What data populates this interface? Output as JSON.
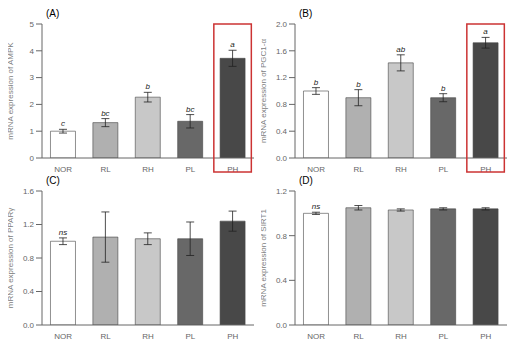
{
  "chart_data": [
    {
      "type": "bar",
      "title": "(A)",
      "ylabel": "mRNA expression of AMPK",
      "categories": [
        "NOR",
        "RL",
        "RH",
        "PL",
        "PH"
      ],
      "values": [
        1.0,
        1.32,
        2.27,
        1.37,
        3.72
      ],
      "errors": [
        0.07,
        0.15,
        0.18,
        0.25,
        0.3
      ],
      "colors": [
        "#ffffff",
        "#b0b0b0",
        "#c8c8c8",
        "#686868",
        "#484848"
      ],
      "ylim": [
        0,
        5
      ],
      "yticks": [
        0,
        1,
        2,
        3,
        4,
        5
      ],
      "grid": false,
      "annotations": [
        {
          "category": "NOR",
          "text": "c"
        },
        {
          "category": "RL",
          "text": "bc"
        },
        {
          "category": "RH",
          "text": "b"
        },
        {
          "category": "PL",
          "text": "bc"
        },
        {
          "category": "PH",
          "text": "a"
        },
        {
          "category": "PH",
          "shape": "box",
          "color": "#cc3333"
        }
      ]
    },
    {
      "type": "bar",
      "title": "(B)",
      "ylabel": "mRNA expression of PGC1-α",
      "categories": [
        "NOR",
        "RL",
        "RH",
        "PL",
        "PH"
      ],
      "values": [
        1.0,
        0.9,
        1.42,
        0.9,
        1.72
      ],
      "errors": [
        0.05,
        0.12,
        0.12,
        0.06,
        0.08
      ],
      "colors": [
        "#ffffff",
        "#b0b0b0",
        "#c8c8c8",
        "#686868",
        "#484848"
      ],
      "ylim": [
        0,
        2.0
      ],
      "yticks": [
        {
          "value": 0,
          "label": "0.0"
        },
        0.4,
        0.8,
        1.2,
        1.6,
        {
          "value": 2,
          "label": "2.0"
        }
      ],
      "grid": false,
      "annotations": [
        {
          "category": "NOR",
          "text": "b"
        },
        {
          "category": "RL",
          "text": "b"
        },
        {
          "category": "RH",
          "text": "ab"
        },
        {
          "category": "PL",
          "text": "b"
        },
        {
          "category": "PH",
          "text": "a"
        },
        {
          "category": "PH",
          "shape": "box",
          "color": "#cc3333"
        }
      ]
    },
    {
      "type": "bar",
      "title": "(C)",
      "ylabel": "mRNA expression of PPARγ",
      "categories": [
        "NOR",
        "RL",
        "RH",
        "PL",
        "PH"
      ],
      "values": [
        1.0,
        1.05,
        1.03,
        1.03,
        1.24
      ],
      "errors": [
        0.04,
        0.3,
        0.07,
        0.2,
        0.12
      ],
      "colors": [
        "#ffffff",
        "#b0b0b0",
        "#c8c8c8",
        "#686868",
        "#484848"
      ],
      "ylim": [
        0,
        1.6
      ],
      "yticks": [
        {
          "value": 0,
          "label": "0.0"
        },
        0.4,
        0.8,
        1.2,
        1.6
      ],
      "grid": false,
      "annotations": [
        {
          "category": "NOR",
          "text": "ns"
        }
      ]
    },
    {
      "type": "bar",
      "title": "(D)",
      "ylabel": "mRNA expression of SIRT1",
      "categories": [
        "NOR",
        "RL",
        "RH",
        "PL",
        "PH"
      ],
      "values": [
        1.0,
        1.05,
        1.03,
        1.04,
        1.04
      ],
      "errors": [
        0.01,
        0.02,
        0.01,
        0.01,
        0.01
      ],
      "colors": [
        "#ffffff",
        "#b0b0b0",
        "#c8c8c8",
        "#686868",
        "#484848"
      ],
      "ylim": [
        0,
        1.2
      ],
      "yticks": [
        {
          "value": 0,
          "label": "0.0"
        },
        0.4,
        0.8,
        1.2
      ],
      "grid": false,
      "annotations": [
        {
          "category": "NOR",
          "text": "ns"
        }
      ]
    }
  ]
}
